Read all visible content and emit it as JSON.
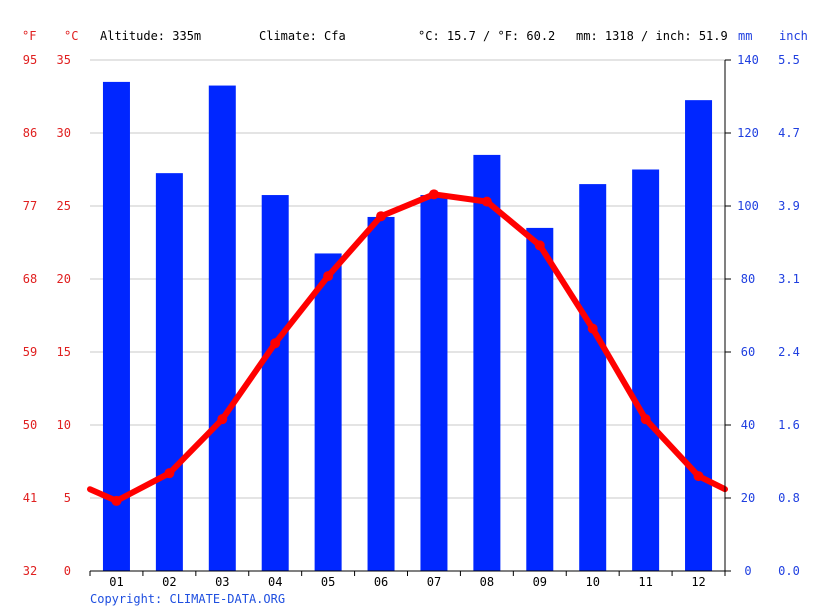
{
  "header": {
    "unit_f": "°F",
    "unit_c": "°C",
    "altitude": "Altitude: 335m",
    "climate": "Climate: Cfa",
    "temp_avg": "°C: 15.7 / °F: 60.2",
    "precip_total": "mm: 1318 / inch: 51.9",
    "unit_mm": "mm",
    "unit_inch": "inch"
  },
  "footer": {
    "copyright": "Copyright: CLIMATE-DATA.ORG"
  },
  "colors": {
    "temp": "#ff0000",
    "precip": "#0026ff",
    "axis_left": "#e02020",
    "axis_right": "#1f3fe0",
    "grid": "#c8c8c8"
  },
  "chart_data": {
    "type": "bar+line",
    "categories": [
      "01",
      "02",
      "03",
      "04",
      "05",
      "06",
      "07",
      "08",
      "09",
      "10",
      "11",
      "12"
    ],
    "series": [
      {
        "name": "mm",
        "type": "bar",
        "axis": "right",
        "values": [
          134,
          109,
          133,
          103,
          87,
          97,
          103,
          114,
          94,
          106,
          110,
          129
        ]
      },
      {
        "name": "°C",
        "type": "line",
        "axis": "left",
        "values": [
          4.8,
          6.7,
          10.4,
          15.6,
          20.2,
          24.3,
          25.8,
          25.3,
          22.3,
          16.6,
          10.4,
          6.5
        ]
      }
    ],
    "left_axis_c": {
      "ylim": [
        0,
        35
      ],
      "ticks": [
        "0",
        "5",
        "10",
        "15",
        "20",
        "25",
        "30",
        "35"
      ]
    },
    "left_axis_f": {
      "ticks": [
        "32",
        "41",
        "50",
        "59",
        "68",
        "77",
        "86",
        "95"
      ]
    },
    "right_axis_mm": {
      "ylim": [
        0,
        140
      ],
      "ticks": [
        "0",
        "20",
        "40",
        "60",
        "80",
        "100",
        "120",
        "140"
      ]
    },
    "right_axis_inch": {
      "ticks": [
        "0.0",
        "0.8",
        "1.6",
        "2.4",
        "3.1",
        "3.9",
        "4.7",
        "5.5"
      ]
    },
    "line_edges_c": [
      5.6,
      5.6
    ],
    "grid": true
  }
}
